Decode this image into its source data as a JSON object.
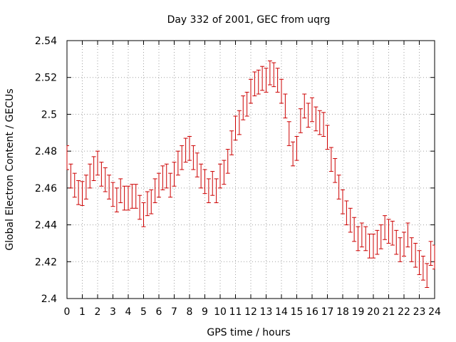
{
  "chart_data": {
    "type": "scatter",
    "title": "Day 332 of 2001, GEC from uqrg",
    "xlabel": "GPS time / hours",
    "ylabel": "Global Electron Content / GECUs",
    "xlim": [
      0,
      24
    ],
    "ylim": [
      2.4,
      2.54
    ],
    "x_ticks": [
      "0",
      "1",
      "2",
      "3",
      "4",
      "5",
      "6",
      "7",
      "8",
      "9",
      "10",
      "11",
      "12",
      "13",
      "14",
      "15",
      "16",
      "17",
      "18",
      "19",
      "20",
      "21",
      "22",
      "23",
      "24"
    ],
    "y_ticks": [
      "2.4",
      "2.42",
      "2.44",
      "2.46",
      "2.48",
      "2.5",
      "2.52",
      "2.54"
    ],
    "grid": true,
    "series_color": "#cc0000",
    "error_half_width": 0.0065,
    "series": [
      {
        "x": [
          0,
          0.25,
          0.5,
          0.75,
          1,
          1.25,
          1.5,
          1.75,
          2,
          2.25,
          2.5,
          2.75,
          3,
          3.25,
          3.5,
          3.75,
          4,
          4.25,
          4.5,
          4.75,
          5,
          5.25,
          5.5,
          5.75,
          6,
          6.25,
          6.5,
          6.75,
          7,
          7.25,
          7.5,
          7.75,
          8,
          8.25,
          8.5,
          8.75,
          9,
          9.25,
          9.5,
          9.75,
          10,
          10.25,
          10.5,
          10.75,
          11,
          11.25,
          11.5,
          11.75,
          12,
          12.25,
          12.5,
          12.75,
          13,
          13.25,
          13.5,
          13.75,
          14,
          14.25,
          14.5,
          14.75,
          15,
          15.25,
          15.5,
          15.75,
          16,
          16.25,
          16.5,
          16.75,
          17,
          17.25,
          17.5,
          17.75,
          18,
          18.25,
          18.5,
          18.75,
          19,
          19.25,
          19.5,
          19.75,
          20,
          20.25,
          20.5,
          20.75,
          21,
          21.25,
          21.5,
          21.75,
          22,
          22.25,
          22.5,
          22.75,
          23,
          23.25,
          23.5,
          23.75,
          24
        ],
        "values": [
          2.4765,
          2.4665,
          2.4615,
          2.4575,
          2.457,
          2.4605,
          2.4665,
          2.4705,
          2.4735,
          2.4675,
          2.4645,
          2.4605,
          2.4565,
          2.4535,
          2.4585,
          2.4545,
          2.4545,
          2.4555,
          2.4555,
          2.4495,
          2.4455,
          2.4515,
          2.4525,
          2.4585,
          2.4615,
          2.4655,
          2.4665,
          2.4615,
          2.4675,
          2.4735,
          2.4765,
          2.4805,
          2.4815,
          2.4765,
          2.4725,
          2.4665,
          2.4635,
          2.4585,
          2.4625,
          2.4585,
          2.4665,
          2.4685,
          2.4745,
          2.4845,
          2.4925,
          2.4955,
          2.5035,
          2.5055,
          2.5125,
          2.5165,
          2.5175,
          2.5195,
          2.5185,
          2.5225,
          2.5215,
          2.5185,
          2.5125,
          2.5045,
          2.4895,
          2.4785,
          2.4815,
          2.4965,
          2.5045,
          2.4995,
          2.5025,
          2.4975,
          2.4955,
          2.4945,
          2.4875,
          2.4755,
          2.4695,
          2.4605,
          2.4525,
          2.4465,
          2.4425,
          2.4375,
          2.4325,
          2.4345,
          2.4325,
          2.4285,
          2.4285,
          2.4305,
          2.4335,
          2.4385,
          2.4365,
          2.4355,
          2.4305,
          2.4265,
          2.4295,
          2.4345,
          2.4265,
          2.4235,
          2.4195,
          2.4165,
          2.4125,
          2.4245,
          2.4225
        ]
      }
    ]
  }
}
